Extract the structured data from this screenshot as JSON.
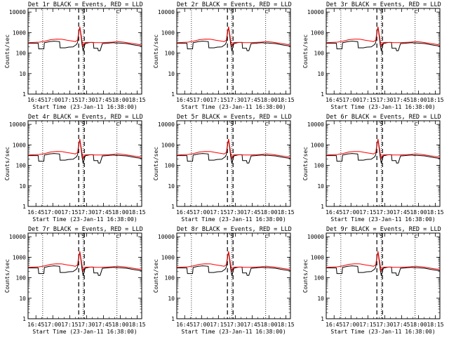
{
  "chart_data": [
    {
      "type": "line",
      "title": "Det 1r BLACK = Events, RED = LLD"
    },
    {
      "type": "line",
      "title": "Det 2r BLACK = Events, RED = LLD"
    },
    {
      "type": "line",
      "title": "Det 3r BLACK = Events, RED = LLD"
    },
    {
      "type": "line",
      "title": "Det 4r BLACK = Events, RED = LLD"
    },
    {
      "type": "line",
      "title": "Det 5r BLACK = Events, RED = LLD"
    },
    {
      "type": "line",
      "title": "Det 6r BLACK = Events, RED = LLD"
    },
    {
      "type": "line",
      "title": "Det 7r BLACK = Events, RED = LLD"
    },
    {
      "type": "line",
      "title": "Det 8r BLACK = Events, RED = LLD"
    },
    {
      "type": "line",
      "title": "Det 9r BLACK = Events, RED = LLD"
    }
  ],
  "shared": {
    "xlabel": "Start Time (23-Jan-11 16:38:00)",
    "ylabel": "Counts/sec",
    "xticks": [
      "16:45",
      "17:00",
      "17:15",
      "17:30",
      "17:45",
      "18:00",
      "18:15"
    ],
    "xtick_minutes": [
      7,
      22,
      37,
      52,
      67,
      82,
      97
    ],
    "xlim_minutes": [
      0,
      101
    ],
    "ylim": [
      1,
      15000
    ],
    "yscale": "log",
    "yticks": [
      "1",
      "10",
      "100",
      "1000",
      "10000"
    ],
    "ytick_values": [
      1,
      10,
      100,
      1000,
      10000
    ],
    "markers": [
      {
        "label": "S",
        "x": 49
      },
      {
        "label": "N",
        "x": 49
      },
      {
        "label": "⊏",
        "x": 80
      }
    ],
    "vlines_dotted": [
      13,
      49,
      79
    ],
    "vlines_dashed": [
      45,
      50
    ],
    "series_colors": {
      "events": "#000000",
      "lld": "#ff0000"
    },
    "events": {
      "x": [
        0,
        9,
        9.5,
        14,
        14.5,
        16,
        19,
        23,
        28,
        28.5,
        33,
        36,
        40,
        42,
        43,
        44,
        45,
        46,
        47,
        48,
        49,
        50,
        51,
        52,
        53,
        54,
        56,
        58,
        58.5,
        62,
        62.5,
        64,
        66,
        70,
        72,
        76,
        79,
        80,
        84,
        88,
        92,
        96,
        101
      ],
      "y": [
        300,
        300,
        160,
        160,
        320,
        330,
        360,
        380,
        360,
        180,
        180,
        195,
        200,
        240,
        260,
        330,
        900,
        1900,
        700,
        250,
        120,
        220,
        300,
        300,
        310,
        320,
        330,
        330,
        170,
        170,
        130,
        130,
        290,
        300,
        310,
        320,
        300,
        310,
        300,
        290,
        260,
        240,
        220
      ]
    },
    "lld": {
      "x": [
        0,
        5,
        10,
        15,
        20,
        25,
        30,
        35,
        40,
        42,
        44,
        45,
        46,
        47,
        48,
        49,
        50,
        52,
        55,
        60,
        65,
        70,
        75,
        80,
        85,
        90,
        95,
        101
      ],
      "y": [
        320,
        330,
        340,
        380,
        450,
        480,
        470,
        420,
        380,
        360,
        430,
        1100,
        1900,
        900,
        380,
        220,
        320,
        330,
        330,
        320,
        320,
        330,
        340,
        360,
        340,
        310,
        280,
        250
      ]
    }
  }
}
